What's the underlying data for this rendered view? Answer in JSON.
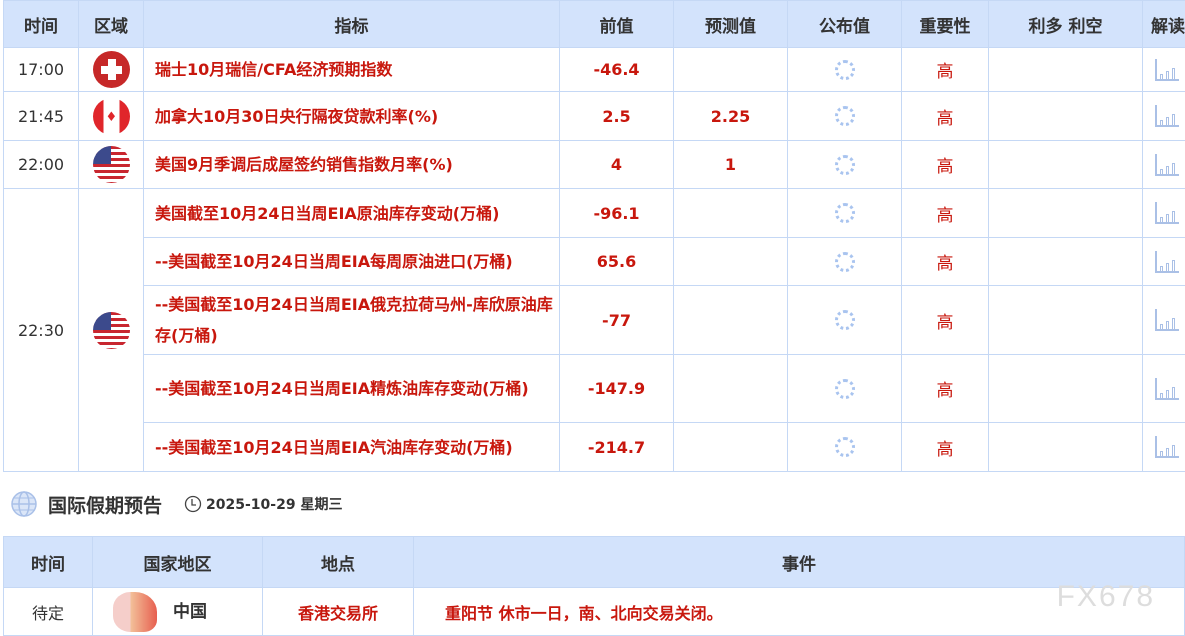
{
  "calendar": {
    "headers": [
      "时间",
      "区域",
      "指标",
      "前值",
      "预测值",
      "公布值",
      "重要性",
      "利多 利空",
      "解读"
    ],
    "rows": [
      {
        "time": "17:00",
        "flag": "switzerland",
        "indicator": "瑞士10月瑞信/CFA经济预期指数",
        "previous": "-46.4",
        "forecast": "",
        "importance": "高"
      },
      {
        "time": "21:45",
        "flag": "canada",
        "indicator": "加拿大10月30日央行隔夜贷款利率(%)",
        "previous": "2.5",
        "forecast": "2.25",
        "importance": "高"
      },
      {
        "time": "22:00",
        "flag": "usa",
        "indicator": "美国9月季调后成屋签约销售指数月率(%)",
        "previous": "4",
        "forecast": "1",
        "importance": "高"
      },
      {
        "time": "22:30",
        "flag": "usa",
        "indicator": "美国截至10月24日当周EIA原油库存变动(万桶)",
        "previous": "-96.1",
        "forecast": "",
        "importance": "高"
      },
      {
        "indicator": "--美国截至10月24日当周EIA每周原油进口(万桶)",
        "previous": "65.6",
        "forecast": "",
        "importance": "高"
      },
      {
        "indicator": "--美国截至10月24日当周EIA俄克拉荷马州-库欣原油库存(万桶)",
        "previous": "-77",
        "forecast": "",
        "importance": "高"
      },
      {
        "indicator": "--美国截至10月24日当周EIA精炼油库存变动(万桶)",
        "previous": "-147.9",
        "forecast": "",
        "importance": "高"
      },
      {
        "indicator": "--美国截至10月24日当周EIA汽油库存变动(万桶)",
        "previous": "-214.7",
        "forecast": "",
        "importance": "高"
      }
    ]
  },
  "holidays": {
    "title": "国际假期预告",
    "date": "2025-10-29 星期三",
    "headers": [
      "时间",
      "国家地区",
      "地点",
      "事件"
    ],
    "rows": [
      {
        "time": "待定",
        "country": "中国",
        "place": "香港交易所",
        "event": "重阳节 休市一日，南、北向交易关闭。"
      }
    ]
  },
  "watermark": "FX678",
  "colors": {
    "header_bg": "#d3e3fc",
    "accent_red": "#c8170d",
    "border": "#c5d8f5"
  }
}
